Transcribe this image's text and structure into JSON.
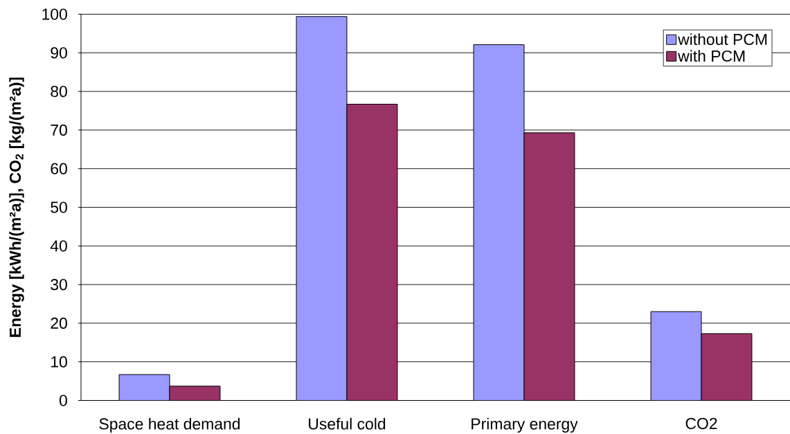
{
  "chart_data": {
    "type": "bar",
    "ylabel": "Energy [kWh/(m²a)], CO$_{2}$ [kg/(m²a)]",
    "categories": [
      "Space heat demand",
      "Useful cold",
      "Primary energy",
      "CO2"
    ],
    "series": [
      {
        "name": "without PCM",
        "color": "#9999ff",
        "values": [
          6.7,
          99.4,
          92.1,
          23.0
        ]
      },
      {
        "name": "with PCM",
        "color": "#993366",
        "values": [
          3.7,
          76.7,
          69.3,
          17.3
        ]
      }
    ],
    "ylim": [
      0,
      100
    ],
    "yticks": [
      0,
      10,
      20,
      30,
      40,
      50,
      60,
      70,
      80,
      90,
      100
    ],
    "grid": "y",
    "legend": "top right"
  }
}
